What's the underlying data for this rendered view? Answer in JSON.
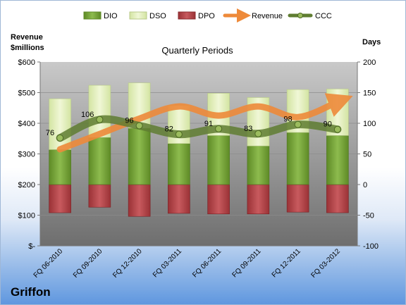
{
  "company": "Griffon",
  "chart_data": {
    "type": "bar",
    "title": "Quarterly Periods",
    "left_axis_label": [
      "Revenue",
      "$millions"
    ],
    "right_axis_label": "Days",
    "left_ticks": [
      "$-",
      "$100",
      "$200",
      "$300",
      "$400",
      "$500",
      "$600"
    ],
    "right_ticks": [
      "-100",
      "-50",
      "0",
      "50",
      "100",
      "150",
      "200"
    ],
    "left_ylim": [
      0,
      600
    ],
    "right_ylim": [
      -100,
      200
    ],
    "categories": [
      "FQ 06-2010",
      "FQ 09-2010",
      "FQ 12-2010",
      "FQ 03-2011",
      "FQ 06-2011",
      "FQ 09-2011",
      "FQ 12-2011",
      "FQ 03-2012"
    ],
    "legend_position": "top",
    "series": [
      {
        "name": "DIO",
        "kind": "stacked-bar",
        "axis": "days",
        "color": "#77a33b",
        "values": [
          57,
          77,
          92,
          67,
          80,
          63,
          85,
          80
        ]
      },
      {
        "name": "DSO",
        "kind": "stacked-bar",
        "axis": "days",
        "color": "#e0edb9",
        "values": [
          83,
          85,
          74,
          62,
          69,
          79,
          70,
          76
        ]
      },
      {
        "name": "DPO",
        "kind": "negative-bar",
        "axis": "days",
        "color": "#b8474b",
        "values": [
          -46,
          -37,
          -52,
          -47,
          -48,
          -48,
          -45,
          -46
        ]
      },
      {
        "name": "Revenue",
        "kind": "line",
        "axis": "revenue",
        "color": "#ee8a3a",
        "values": [
          315,
          365,
          415,
          455,
          425,
          455,
          420,
          470
        ]
      },
      {
        "name": "CCC",
        "kind": "line",
        "axis": "days",
        "color": "#5f7d31",
        "values": [
          76,
          106,
          96,
          82,
          91,
          83,
          98,
          90
        ],
        "labels": [
          "76",
          "106",
          "96",
          "82",
          "91",
          "83",
          "98",
          "90"
        ]
      }
    ]
  }
}
